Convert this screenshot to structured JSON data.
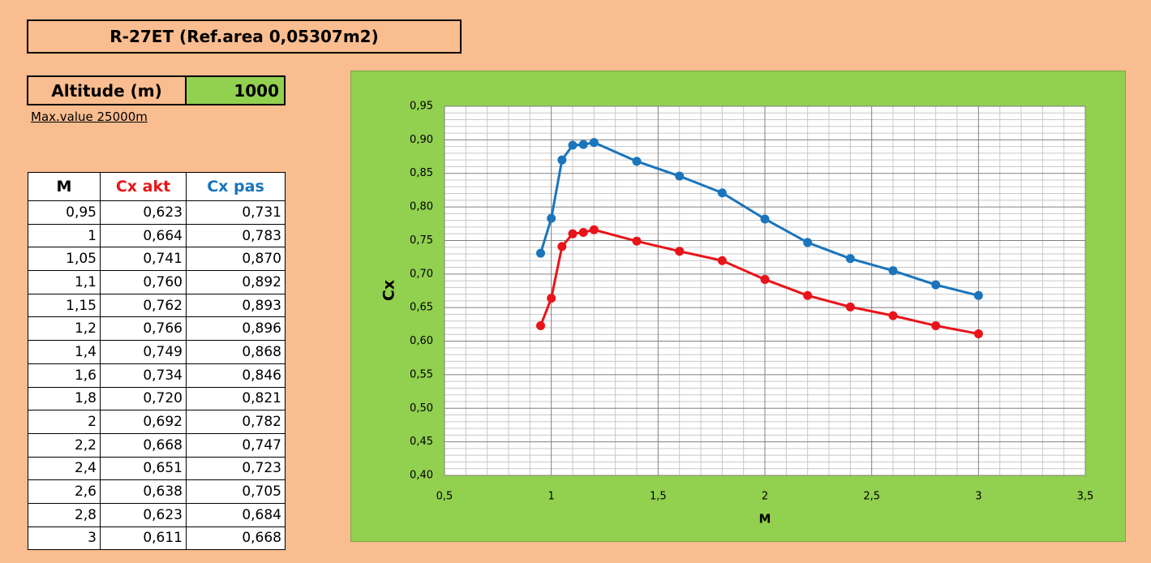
{
  "title": "R-27ET (Ref.area 0,05307m2)",
  "altitude": {
    "label": "Altitude (m)",
    "value": "1000",
    "note": "Max.value 25000m"
  },
  "table": {
    "headers": [
      "M",
      "Cx akt",
      "Cx pas"
    ],
    "rows": [
      [
        "0,95",
        "0,623",
        "0,731"
      ],
      [
        "1",
        "0,664",
        "0,783"
      ],
      [
        "1,05",
        "0,741",
        "0,870"
      ],
      [
        "1,1",
        "0,760",
        "0,892"
      ],
      [
        "1,15",
        "0,762",
        "0,893"
      ],
      [
        "1,2",
        "0,766",
        "0,896"
      ],
      [
        "1,4",
        "0,749",
        "0,868"
      ],
      [
        "1,6",
        "0,734",
        "0,846"
      ],
      [
        "1,8",
        "0,720",
        "0,821"
      ],
      [
        "2",
        "0,692",
        "0,782"
      ],
      [
        "2,2",
        "0,668",
        "0,747"
      ],
      [
        "2,4",
        "0,651",
        "0,723"
      ],
      [
        "2,6",
        "0,638",
        "0,705"
      ],
      [
        "2,8",
        "0,623",
        "0,684"
      ],
      [
        "3",
        "0,611",
        "0,668"
      ]
    ]
  },
  "chart_data": {
    "type": "line",
    "x_label": "M",
    "y_label": "Cx",
    "x": [
      0.95,
      1,
      1.05,
      1.1,
      1.15,
      1.2,
      1.4,
      1.6,
      1.8,
      2,
      2.2,
      2.4,
      2.6,
      2.8,
      3
    ],
    "series": [
      {
        "color": "#e8141a",
        "values": [
          0.623,
          0.664,
          0.741,
          0.76,
          0.762,
          0.766,
          0.749,
          0.734,
          0.72,
          0.692,
          0.668,
          0.651,
          0.638,
          0.623,
          0.611
        ]
      },
      {
        "color": "#1a75bc",
        "values": [
          0.731,
          0.783,
          0.87,
          0.892,
          0.893,
          0.896,
          0.868,
          0.846,
          0.821,
          0.782,
          0.747,
          0.723,
          0.705,
          0.684,
          0.668
        ]
      }
    ],
    "xlim": [
      0.5,
      3.5
    ],
    "xticks": [
      {
        "value": 0.5,
        "label": "0,5"
      },
      1,
      {
        "value": 1.5,
        "label": "1,5"
      },
      2,
      {
        "value": 2.5,
        "label": "2,5"
      },
      3,
      {
        "value": 3.5,
        "label": "3,5"
      }
    ],
    "ylim": [
      0.4,
      0.95
    ],
    "yticks": [
      {
        "value": 0.4,
        "label": "0,40"
      },
      {
        "value": 0.45,
        "label": "0,45"
      },
      {
        "value": 0.5,
        "label": "0,50"
      },
      {
        "value": 0.55,
        "label": "0,55"
      },
      {
        "value": 0.6,
        "label": "0,60"
      },
      {
        "value": 0.65,
        "label": "0,65"
      },
      {
        "value": 0.7,
        "label": "0,70"
      },
      {
        "value": 0.75,
        "label": "0,75"
      },
      {
        "value": 0.8,
        "label": "0,80"
      },
      {
        "value": 0.85,
        "label": "0,85"
      },
      {
        "value": 0.9,
        "label": "0,90"
      },
      {
        "value": 0.95,
        "label": "0,95"
      }
    ],
    "grid": true,
    "minor_grid": true
  }
}
